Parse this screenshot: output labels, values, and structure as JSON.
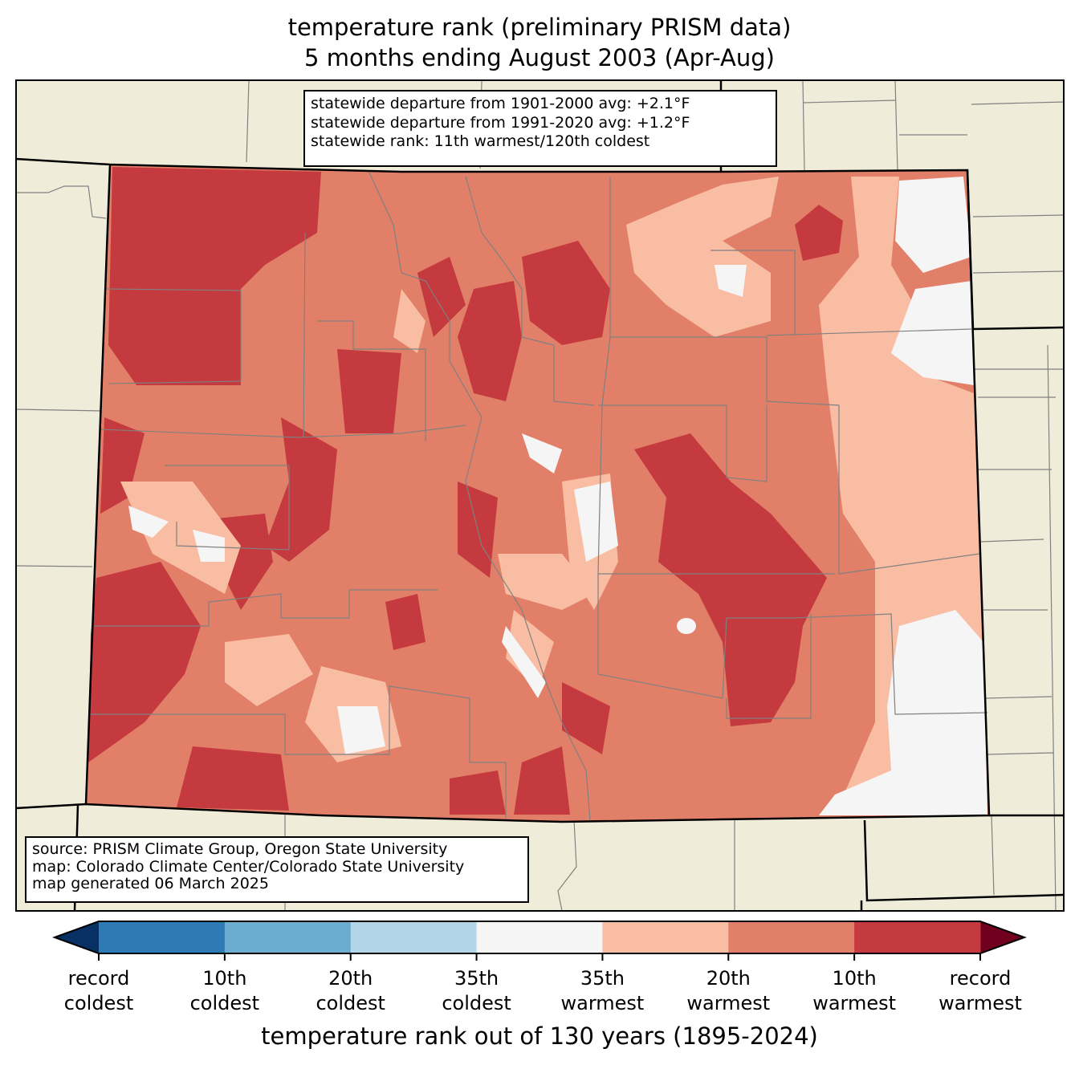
{
  "title": {
    "line1": "temperature rank (preliminary PRISM data)",
    "line2": "5 months ending August 2003 (Apr-Aug)"
  },
  "stats_box": {
    "line1": "statewide departure from 1901-2000 avg: +2.1°F",
    "line2": "statewide departure from 1991-2020 avg: +1.2°F",
    "line3": "statewide rank: 11th warmest/120th coldest"
  },
  "source_box": {
    "line1": "source: PRISM Climate Group, Oregon State University",
    "line2": "map: Colorado Climate Center/Colorado State University",
    "line3": "map generated 06 March 2025"
  },
  "colorbar": {
    "title": "temperature rank out of 130 years (1895-2024)",
    "colors": [
      "#2f79b5",
      "#6bacd0",
      "#b2d5e7",
      "#f5f5f5",
      "#f9bda4",
      "#e27f68",
      "#c43a3e"
    ],
    "under_color": "#073064",
    "over_color": "#71001f",
    "ticks": [
      {
        "line1": "record",
        "line2": "coldest"
      },
      {
        "line1": "10th",
        "line2": "coldest"
      },
      {
        "line1": "20th",
        "line2": "coldest"
      },
      {
        "line1": "35th",
        "line2": "coldest"
      },
      {
        "line1": "35th",
        "line2": "warmest"
      },
      {
        "line1": "20th",
        "line2": "warmest"
      },
      {
        "line1": "10th",
        "line2": "warmest"
      },
      {
        "line1": "record",
        "line2": "warmest"
      }
    ]
  },
  "map_colors": {
    "land": "#efedda",
    "county_lines": "#808080"
  }
}
